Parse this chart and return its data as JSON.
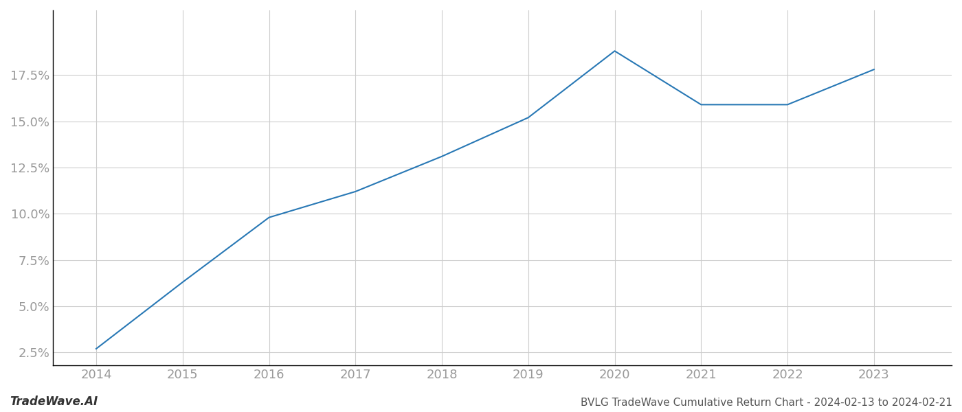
{
  "x_values": [
    2014,
    2015,
    2016,
    2017,
    2018,
    2019,
    2020,
    2021,
    2022,
    2023
  ],
  "y_values": [
    2.7,
    6.3,
    9.8,
    11.2,
    13.1,
    15.2,
    18.8,
    15.9,
    15.9,
    17.8
  ],
  "line_color": "#2878b5",
  "line_width": 1.5,
  "title": "BVLG TradeWave Cumulative Return Chart - 2024-02-13 to 2024-02-21",
  "watermark": "TradeWave.AI",
  "xlim": [
    2013.5,
    2023.9
  ],
  "ylim": [
    1.8,
    21.0
  ],
  "yticks": [
    2.5,
    5.0,
    7.5,
    10.0,
    12.5,
    15.0,
    17.5
  ],
  "xticks": [
    2014,
    2015,
    2016,
    2017,
    2018,
    2019,
    2020,
    2021,
    2022,
    2023
  ],
  "background_color": "#ffffff",
  "grid_color": "#cccccc",
  "tick_color": "#999999",
  "title_color": "#555555",
  "watermark_color": "#333333",
  "title_fontsize": 11,
  "watermark_fontsize": 12,
  "tick_fontsize": 13,
  "spine_color": "#999999"
}
